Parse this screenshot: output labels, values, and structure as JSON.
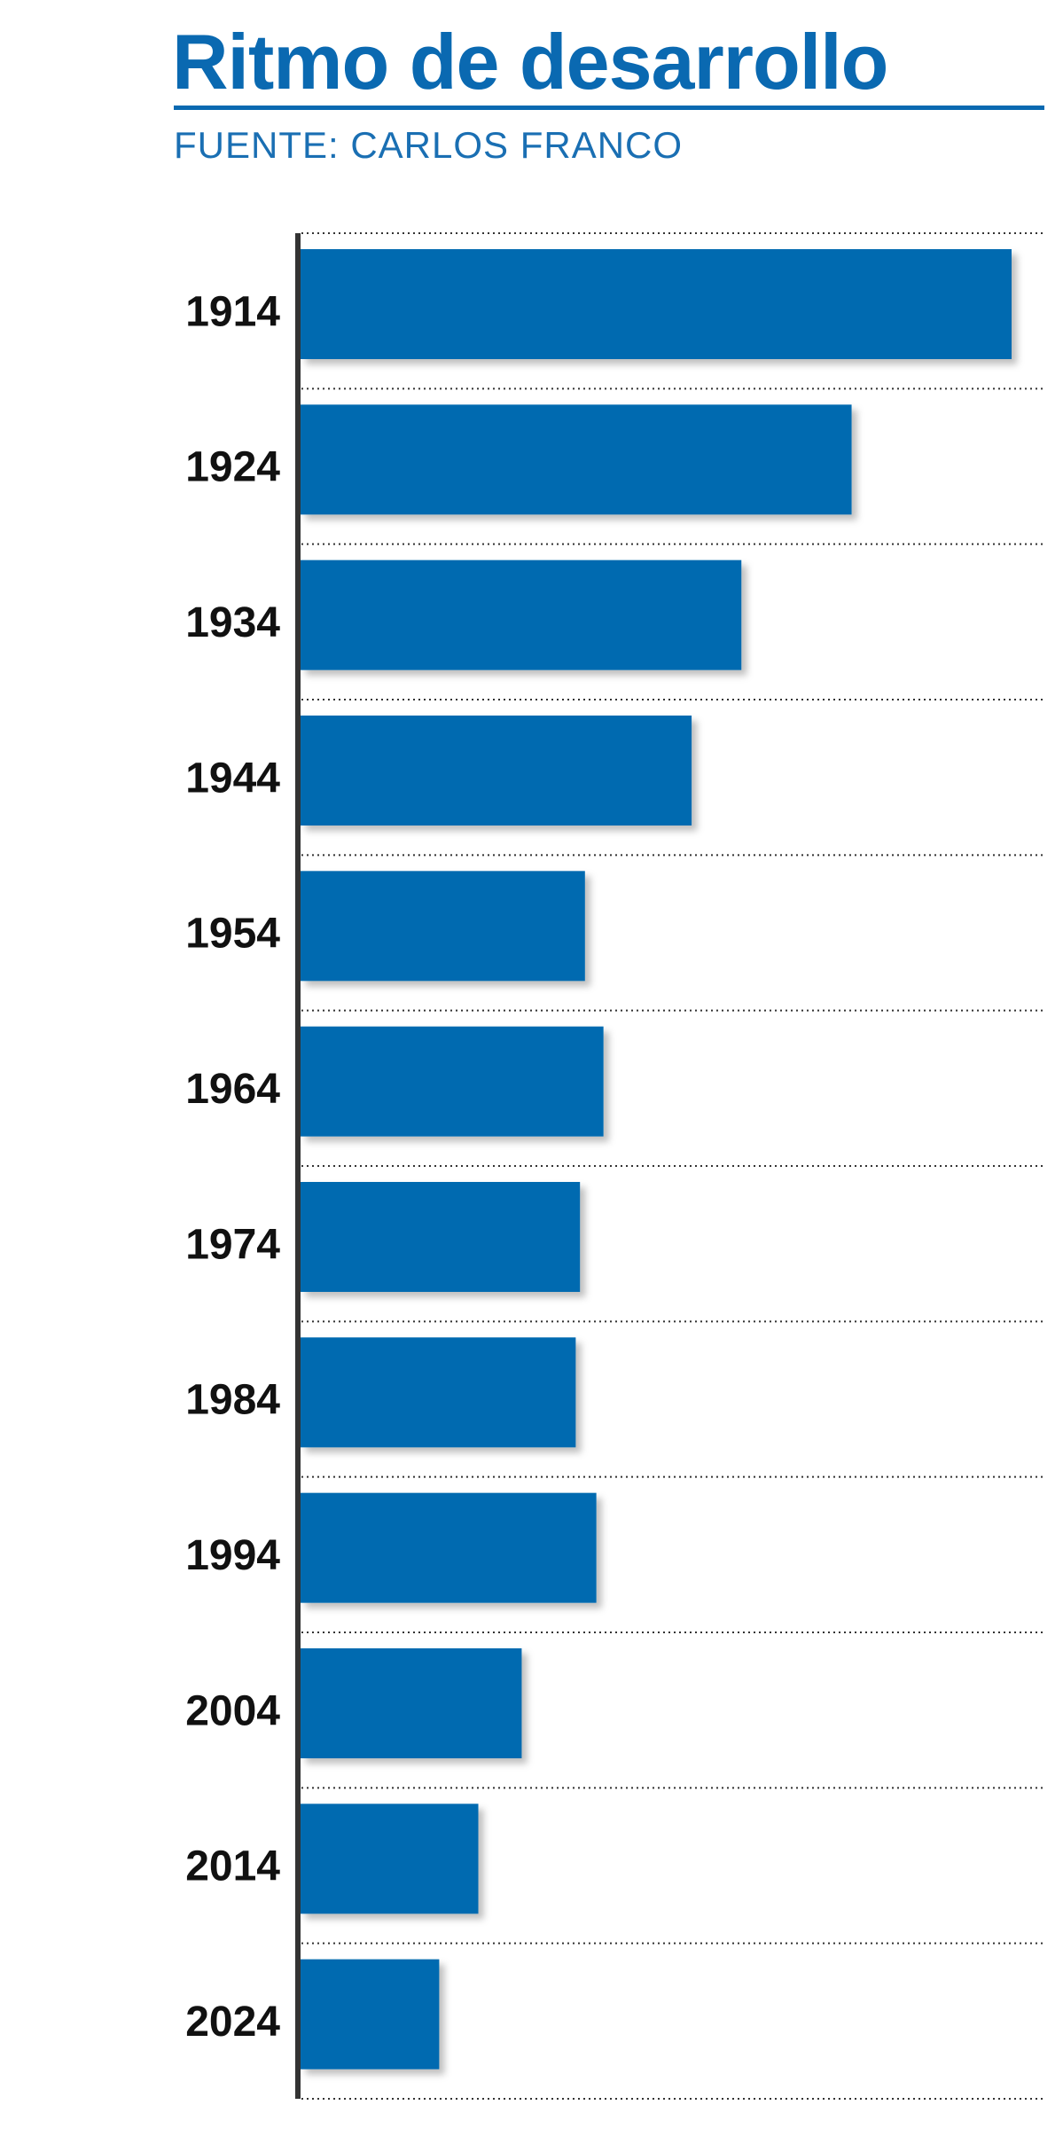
{
  "chart_data": {
    "type": "bar",
    "orientation": "horizontal",
    "title": "Ritmo de desarrollo",
    "subtitle": "FUENTE: CARLOS FRANCO",
    "categories": [
      "1914",
      "1924",
      "1934",
      "1944",
      "1954",
      "1964",
      "1974",
      "1984",
      "1994",
      "2004",
      "2014",
      "2024"
    ],
    "values": [
      100,
      77.5,
      62,
      55,
      40,
      42.6,
      39.3,
      38.7,
      41.6,
      31.1,
      25,
      19.5
    ],
    "color": "#006bb0",
    "xlim": [
      0,
      100
    ],
    "grid": true
  }
}
